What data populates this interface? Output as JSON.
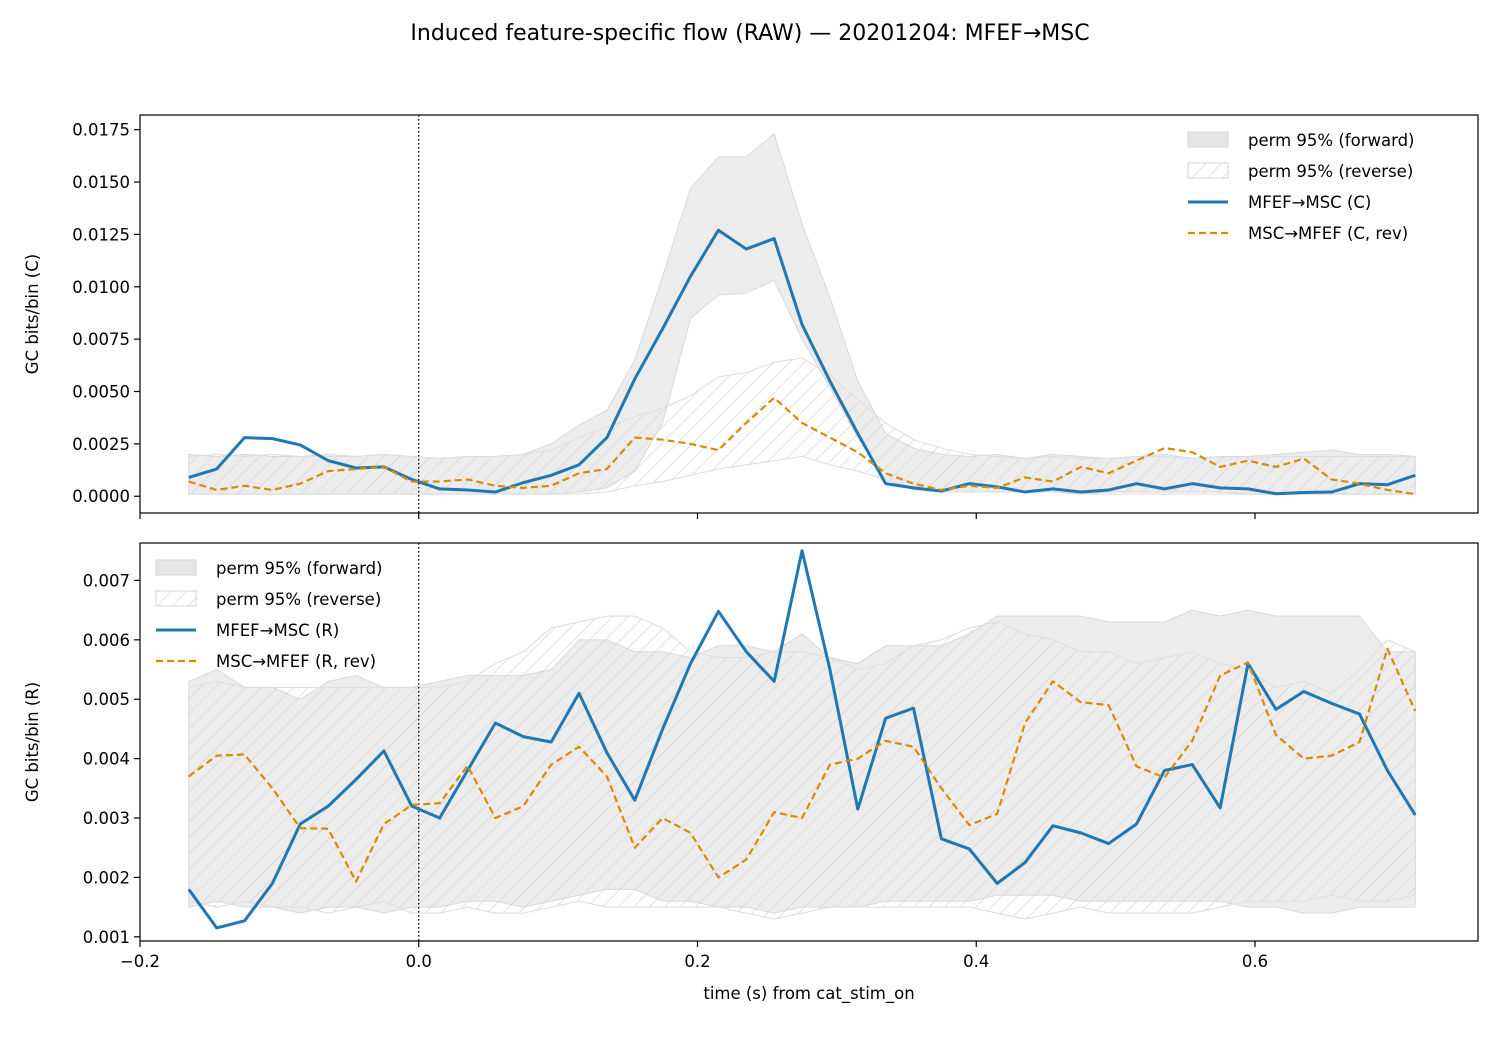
{
  "title": "Induced feature-specific flow (RAW) — 20201204: MFEF→MSC",
  "colors": {
    "forward": "#1f77b4",
    "reverse": "#d98a00",
    "band": "#e6e6e6",
    "hatch": "#c9c9c9"
  },
  "chart_data": [
    {
      "type": "line",
      "name": "top",
      "ylabel": "GC bits/bin (C)",
      "xlabel": "",
      "xlim": [
        -0.2,
        0.76
      ],
      "ylim": [
        -0.0008,
        0.0182
      ],
      "xticks": [
        -0.2,
        0.0,
        0.2,
        0.4,
        0.6
      ],
      "xtick_labels_shown": false,
      "yticks": [
        0.0,
        0.0025,
        0.005,
        0.0075,
        0.01,
        0.0125,
        0.015,
        0.0175
      ],
      "ytick_labels": [
        "0.0000",
        "0.0025",
        "0.0050",
        "0.0075",
        "0.0100",
        "0.0125",
        "0.0150",
        "0.0175"
      ],
      "vline_x": 0.0,
      "legend_position": "upper right",
      "legend": [
        "perm 95% (forward)",
        "perm 95% (reverse)",
        "MFEF→MSC (C)",
        "MSC→MFEF (C, rev)"
      ],
      "x": [
        -0.165,
        -0.145,
        -0.125,
        -0.105,
        -0.085,
        -0.065,
        -0.045,
        -0.025,
        -0.005,
        0.015,
        0.035,
        0.055,
        0.075,
        0.095,
        0.115,
        0.135,
        0.155,
        0.175,
        0.195,
        0.215,
        0.235,
        0.255,
        0.275,
        0.295,
        0.315,
        0.335,
        0.355,
        0.375,
        0.395,
        0.415,
        0.435,
        0.455,
        0.475,
        0.495,
        0.515,
        0.535,
        0.555,
        0.575,
        0.595,
        0.615,
        0.635,
        0.655,
        0.675,
        0.695,
        0.715
      ],
      "series": [
        {
          "name": "MFEF→MSC (C)",
          "values": [
            0.0009,
            0.0013,
            0.0028,
            0.00275,
            0.00245,
            0.0017,
            0.00135,
            0.0014,
            0.0008,
            0.00035,
            0.0003,
            0.0002,
            0.00065,
            0.001,
            0.0015,
            0.0028,
            0.0056,
            0.008,
            0.0105,
            0.0127,
            0.0118,
            0.0123,
            0.0082,
            0.0055,
            0.003,
            0.0006,
            0.0004,
            0.00025,
            0.0006,
            0.00045,
            0.0002,
            0.00035,
            0.0002,
            0.0003,
            0.0006,
            0.00035,
            0.0006,
            0.0004,
            0.00035,
            0.00012,
            0.00018,
            0.0002,
            0.0006,
            0.00055,
            0.001
          ]
        },
        {
          "name": "MSC→MFEF (C, rev)",
          "values": [
            0.0007,
            0.0003,
            0.0005,
            0.0003,
            0.0006,
            0.0012,
            0.0013,
            0.0014,
            0.0007,
            0.0007,
            0.0008,
            0.0005,
            0.0004,
            0.0005,
            0.0011,
            0.0013,
            0.0028,
            0.0027,
            0.0025,
            0.0022,
            0.0035,
            0.0047,
            0.0035,
            0.0028,
            0.0021,
            0.0011,
            0.0006,
            0.0003,
            0.0005,
            0.0004,
            0.0009,
            0.0007,
            0.0014,
            0.0011,
            0.0017,
            0.0023,
            0.0021,
            0.0014,
            0.0017,
            0.0014,
            0.0018,
            0.0008,
            0.0006,
            0.0003,
            0.0001
          ]
        }
      ],
      "bands": [
        {
          "name": "perm 95% (forward)",
          "lower": [
            0.0001,
            0.0001,
            0.0001,
            0.0001,
            0.0001,
            0.0001,
            0.0001,
            0.0001,
            0.0001,
            0.0001,
            0.0001,
            0.0001,
            0.0001,
            0.0001,
            0.0002,
            0.0004,
            0.0012,
            0.0035,
            0.0085,
            0.0096,
            0.0097,
            0.0103,
            0.0075,
            0.0052,
            0.0028,
            0.0008,
            0.0003,
            0.0002,
            0.0002,
            0.0002,
            0.0002,
            0.0002,
            0.0001,
            0.0002,
            0.0002,
            0.0002,
            0.0002,
            0.0002,
            0.0001,
            0.0001,
            0.0001,
            0.0001,
            0.0001,
            0.0001,
            0.0001
          ],
          "upper": [
            0.002,
            0.0019,
            0.002,
            0.0019,
            0.0019,
            0.002,
            0.0019,
            0.002,
            0.0019,
            0.0018,
            0.0019,
            0.0019,
            0.002,
            0.0025,
            0.0034,
            0.0041,
            0.0065,
            0.0105,
            0.0147,
            0.0162,
            0.0162,
            0.0173,
            0.013,
            0.0095,
            0.0055,
            0.003,
            0.0023,
            0.002,
            0.0019,
            0.002,
            0.0018,
            0.002,
            0.0019,
            0.0018,
            0.0019,
            0.002,
            0.0018,
            0.0019,
            0.0019,
            0.002,
            0.0021,
            0.0022,
            0.002,
            0.002,
            0.0019
          ]
        },
        {
          "name": "perm 95% (reverse)",
          "lower": [
            0.0001,
            0.0001,
            0.0001,
            0.0001,
            0.0001,
            0.0001,
            0.0001,
            0.0001,
            0.0001,
            0.0001,
            0.0001,
            0.0001,
            0.0001,
            0.0001,
            0.0001,
            0.0002,
            0.0005,
            0.0007,
            0.001,
            0.0013,
            0.0015,
            0.0017,
            0.0019,
            0.0015,
            0.0012,
            0.0008,
            0.0004,
            0.0002,
            0.0002,
            0.0002,
            0.0002,
            0.0002,
            0.0001,
            0.0001,
            0.0001,
            0.0001,
            0.0001,
            0.0001,
            0.0001,
            0.0001,
            0.0001,
            0.0001,
            0.0001,
            0.0001,
            0.0001
          ],
          "upper": [
            0.0019,
            0.002,
            0.0019,
            0.002,
            0.0019,
            0.0019,
            0.0019,
            0.002,
            0.0019,
            0.0018,
            0.0019,
            0.0019,
            0.002,
            0.0022,
            0.0028,
            0.0033,
            0.0038,
            0.0042,
            0.0048,
            0.0057,
            0.0059,
            0.0064,
            0.0066,
            0.0058,
            0.0046,
            0.0035,
            0.0027,
            0.0023,
            0.002,
            0.0019,
            0.0018,
            0.0019,
            0.0018,
            0.0018,
            0.0019,
            0.0019,
            0.0018,
            0.0019,
            0.0018,
            0.0019,
            0.0019,
            0.0019,
            0.0019,
            0.0019,
            0.0019
          ]
        }
      ]
    },
    {
      "type": "line",
      "name": "bottom",
      "ylabel": "GC bits/bin (R)",
      "xlabel": "time (s) from cat_stim_on",
      "xlim": [
        -0.2,
        0.76
      ],
      "ylim": [
        0.00093,
        0.00763
      ],
      "xticks": [
        -0.2,
        0.0,
        0.2,
        0.4,
        0.6
      ],
      "xtick_labels": [
        "−0.2",
        "0.0",
        "0.2",
        "0.4",
        "0.6"
      ],
      "yticks": [
        0.001,
        0.002,
        0.003,
        0.004,
        0.005,
        0.006,
        0.007
      ],
      "ytick_labels": [
        "0.001",
        "0.002",
        "0.003",
        "0.004",
        "0.005",
        "0.006",
        "0.007"
      ],
      "vline_x": 0.0,
      "legend_position": "upper left",
      "legend": [
        "perm 95% (forward)",
        "perm 95% (reverse)",
        "MFEF→MSC (R)",
        "MSC→MFEF (R, rev)"
      ],
      "x": [
        -0.165,
        -0.145,
        -0.125,
        -0.105,
        -0.085,
        -0.065,
        -0.045,
        -0.025,
        -0.005,
        0.015,
        0.035,
        0.055,
        0.075,
        0.095,
        0.115,
        0.135,
        0.155,
        0.175,
        0.195,
        0.215,
        0.235,
        0.255,
        0.275,
        0.295,
        0.315,
        0.335,
        0.355,
        0.375,
        0.395,
        0.415,
        0.435,
        0.455,
        0.475,
        0.495,
        0.515,
        0.535,
        0.555,
        0.575,
        0.595,
        0.615,
        0.635,
        0.655,
        0.675,
        0.695,
        0.715
      ],
      "series": [
        {
          "name": "MFEF→MSC (R)",
          "values": [
            0.0018,
            0.00115,
            0.00127,
            0.0019,
            0.0029,
            0.0032,
            0.00365,
            0.00413,
            0.0032,
            0.003,
            0.0038,
            0.0046,
            0.00437,
            0.00428,
            0.0051,
            0.0041,
            0.0033,
            0.0045,
            0.0056,
            0.00648,
            0.0058,
            0.0053,
            0.0075,
            0.0055,
            0.00315,
            0.00468,
            0.00485,
            0.00265,
            0.00248,
            0.0019,
            0.00225,
            0.00287,
            0.00275,
            0.00257,
            0.0029,
            0.0038,
            0.0039,
            0.00317,
            0.0056,
            0.00483,
            0.00513,
            0.00493,
            0.00475,
            0.0038,
            0.00305
          ]
        },
        {
          "name": "MSC→MFEF (R, rev)",
          "values": [
            0.0037,
            0.00405,
            0.00407,
            0.0035,
            0.00283,
            0.00282,
            0.00193,
            0.0029,
            0.00322,
            0.00325,
            0.00388,
            0.003,
            0.0032,
            0.0039,
            0.0042,
            0.0037,
            0.0025,
            0.003,
            0.00275,
            0.002,
            0.0023,
            0.0031,
            0.003,
            0.0039,
            0.004,
            0.0043,
            0.0042,
            0.0035,
            0.00288,
            0.00307,
            0.0046,
            0.0053,
            0.00495,
            0.0049,
            0.00387,
            0.00368,
            0.0043,
            0.0054,
            0.00562,
            0.0044,
            0.004,
            0.00405,
            0.00428,
            0.00585,
            0.0048
          ]
        }
      ],
      "bands": [
        {
          "name": "perm 95% (forward)",
          "lower": [
            0.0015,
            0.0016,
            0.0015,
            0.0015,
            0.0014,
            0.0015,
            0.0015,
            0.0014,
            0.0015,
            0.0015,
            0.0016,
            0.0016,
            0.0015,
            0.0016,
            0.0017,
            0.0018,
            0.0018,
            0.0016,
            0.0016,
            0.0015,
            0.0015,
            0.0014,
            0.0015,
            0.0015,
            0.0015,
            0.0016,
            0.0016,
            0.0016,
            0.0016,
            0.0017,
            0.0017,
            0.0017,
            0.0016,
            0.0016,
            0.0016,
            0.0016,
            0.0016,
            0.0016,
            0.0015,
            0.0015,
            0.0014,
            0.0014,
            0.0015,
            0.0015,
            0.0015
          ],
          "upper": [
            0.0053,
            0.0055,
            0.0052,
            0.0052,
            0.005,
            0.0053,
            0.0054,
            0.0052,
            0.0052,
            0.0053,
            0.0054,
            0.0054,
            0.0054,
            0.0055,
            0.006,
            0.006,
            0.0058,
            0.0058,
            0.0057,
            0.0059,
            0.0059,
            0.0058,
            0.0061,
            0.0057,
            0.0056,
            0.0059,
            0.0059,
            0.0059,
            0.0061,
            0.0064,
            0.0064,
            0.0064,
            0.0064,
            0.0063,
            0.0063,
            0.0063,
            0.0065,
            0.0064,
            0.0065,
            0.0064,
            0.0064,
            0.0064,
            0.0064,
            0.0058,
            0.0058
          ]
        },
        {
          "name": "perm 95% (reverse)",
          "lower": [
            0.0016,
            0.0015,
            0.0016,
            0.0015,
            0.0015,
            0.0014,
            0.0015,
            0.0016,
            0.0014,
            0.0014,
            0.0015,
            0.0014,
            0.0014,
            0.0015,
            0.0016,
            0.0015,
            0.0015,
            0.0015,
            0.0015,
            0.0015,
            0.0014,
            0.0013,
            0.0014,
            0.0015,
            0.0015,
            0.0015,
            0.0015,
            0.0015,
            0.0015,
            0.0014,
            0.0013,
            0.0014,
            0.0015,
            0.0014,
            0.0014,
            0.0014,
            0.0014,
            0.0015,
            0.0016,
            0.0016,
            0.0016,
            0.0017,
            0.0016,
            0.0016,
            0.0017
          ],
          "upper": [
            0.0052,
            0.0053,
            0.0052,
            0.0052,
            0.0052,
            0.0052,
            0.0052,
            0.0052,
            0.0052,
            0.0052,
            0.0053,
            0.0056,
            0.0058,
            0.0062,
            0.0063,
            0.0064,
            0.0064,
            0.0062,
            0.0058,
            0.0057,
            0.0057,
            0.0058,
            0.0058,
            0.0057,
            0.0055,
            0.0056,
            0.0059,
            0.006,
            0.0062,
            0.0063,
            0.0061,
            0.006,
            0.0058,
            0.0058,
            0.0056,
            0.0057,
            0.0058,
            0.0056,
            0.0055,
            0.0052,
            0.0053,
            0.0051,
            0.0055,
            0.006,
            0.0058
          ]
        }
      ]
    }
  ]
}
